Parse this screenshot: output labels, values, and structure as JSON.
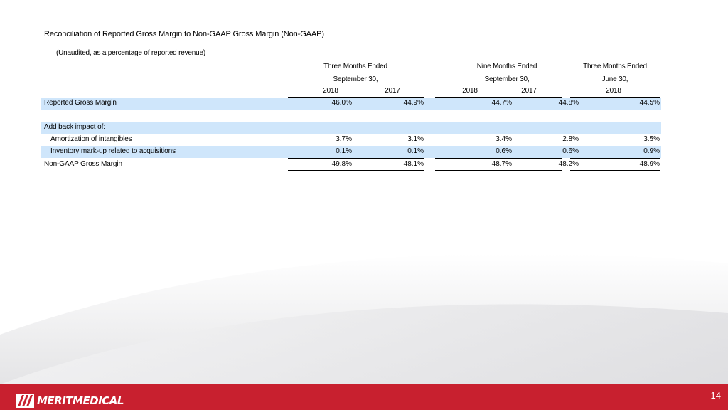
{
  "slide": {
    "title": "Reconciliation of Reported Gross Margin to Non-GAAP Gross Margin (Non-GAAP)",
    "subtitle": "(Unaudited, as a percentage of reported revenue)",
    "page_number": "14"
  },
  "logo": {
    "text": "MERITMEDICAL"
  },
  "colors": {
    "footer": "#c8202f",
    "row_shade": "#cfe6fb"
  },
  "table": {
    "groups": [
      {
        "line1": "Three Months Ended",
        "line2": "September 30,"
      },
      {
        "line1": "Nine Months Ended",
        "line2": "September 30,"
      },
      {
        "line1": "Three Months Ended",
        "line2": "June 30,"
      }
    ],
    "years": [
      "2018",
      "2017",
      "2018",
      "2017",
      "2018"
    ],
    "rows": [
      {
        "label": "Reported Gross Margin",
        "values": [
          "46.0%",
          "44.9%",
          "44.7%",
          "44.8%",
          "44.5%"
        ]
      },
      {
        "label": "Add back impact of:",
        "values": []
      },
      {
        "label": "Amortization of intangibles",
        "values": [
          "3.7%",
          "3.1%",
          "3.4%",
          "2.8%",
          "3.5%"
        ]
      },
      {
        "label": "Inventory mark-up related to acquisitions",
        "values": [
          "0.1%",
          "0.1%",
          "0.6%",
          "0.6%",
          "0.9%"
        ]
      },
      {
        "label": "Non-GAAP Gross Margin",
        "values": [
          "49.8%",
          "48.1%",
          "48.7%",
          "48.2%",
          "48.9%"
        ]
      }
    ]
  }
}
